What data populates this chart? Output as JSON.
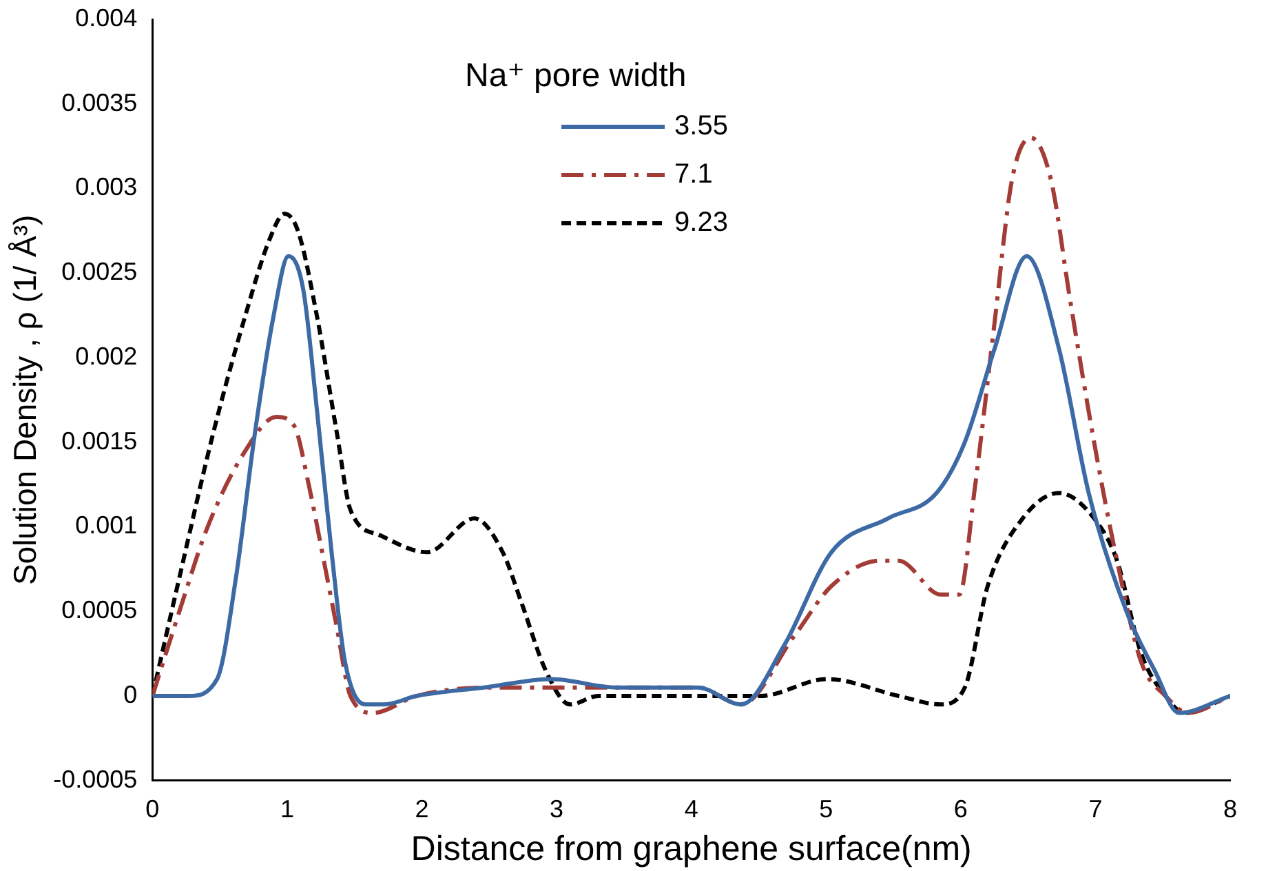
{
  "chart_data": {
    "type": "line",
    "xlabel": "Distance from graphene surface(nm)",
    "ylabel": "Solution Density , ρ (1/ Å³)",
    "legend_title": "Na⁺ pore width",
    "legend": "top",
    "grid": false,
    "marker": "none",
    "xlim": [
      0,
      8
    ],
    "xticks": [
      0,
      1,
      2,
      3,
      4,
      5,
      6,
      7,
      8
    ],
    "ylim": [
      -0.0005,
      0.004
    ],
    "yticks": [
      -0.0005,
      0,
      0.0005,
      0.001,
      0.0015,
      0.002,
      0.0025,
      0.003,
      0.0035,
      0.004
    ],
    "series": [
      {
        "name": "3.55",
        "color": "#3d6aa5",
        "line_style": "solid",
        "x": [
          0,
          0.27,
          0.48,
          0.62,
          0.76,
          0.9,
          1.01,
          1.12,
          1.22,
          1.33,
          1.43,
          1.58,
          1.72,
          1.96,
          2.46,
          2.96,
          3.45,
          4.05,
          4.37,
          4.69,
          5.04,
          5.46,
          5.82,
          6.03,
          6.25,
          6.49,
          6.73,
          6.95,
          7.23,
          7.44,
          7.62,
          8
        ],
        "values": [
          0,
          0,
          0.0001,
          0.0007,
          0.00155,
          0.00225,
          0.0026,
          0.0024,
          0.0017,
          0.00085,
          0.0002,
          -5e-05,
          -5e-05,
          0,
          5e-05,
          0.0001,
          5e-05,
          5e-05,
          -5e-05,
          0.0003,
          0.00085,
          0.00105,
          0.0012,
          0.0015,
          0.00205,
          0.0026,
          0.00205,
          0.0012,
          0.0005,
          0.00015,
          -0.0001,
          0
        ]
      },
      {
        "name": "7.1",
        "color": "#a33b36",
        "line_style": "dashdot",
        "x": [
          0,
          0.2,
          0.41,
          0.69,
          0.92,
          1.05,
          1.16,
          1.26,
          1.37,
          1.47,
          1.64,
          1.96,
          2.49,
          3.1,
          4.05,
          4.37,
          4.76,
          5.04,
          5.4,
          5.54,
          5.85,
          5.99,
          6.1,
          6.25,
          6.38,
          6.52,
          6.67,
          6.81,
          6.99,
          7.16,
          7.34,
          7.52,
          7.69,
          8
        ],
        "values": [
          0,
          0.0005,
          0.001,
          0.00145,
          0.00165,
          0.0016,
          0.00125,
          0.00085,
          0.0004,
          0,
          -0.0001,
          0,
          5e-05,
          5e-05,
          5e-05,
          -5e-05,
          0.00035,
          0.00065,
          0.0008,
          0.0008,
          0.0006,
          0.0006,
          0.0012,
          0.0022,
          0.00305,
          0.0033,
          0.00305,
          0.00235,
          0.0015,
          0.0008,
          0.0002,
          0,
          -0.0001,
          0
        ]
      },
      {
        "name": "9.23",
        "color": "#000000",
        "line_style": "dashed",
        "x": [
          0,
          0.2,
          0.45,
          0.69,
          0.87,
          0.98,
          1.08,
          1.22,
          1.37,
          1.47,
          1.69,
          2.04,
          2.39,
          2.6,
          2.74,
          2.92,
          3.1,
          3.31,
          3.63,
          4.12,
          4.51,
          5.01,
          5.54,
          5.85,
          6.03,
          6.2,
          6.46,
          6.73,
          6.99,
          7.16,
          7.34,
          7.52,
          7.66,
          8
        ],
        "values": [
          0,
          0.0007,
          0.00155,
          0.00225,
          0.0027,
          0.00285,
          0.00275,
          0.00225,
          0.00155,
          0.0011,
          0.00095,
          0.00085,
          0.00105,
          0.00085,
          0.00055,
          0.00015,
          -5e-05,
          0,
          0,
          0,
          0,
          0.0001,
          0,
          -5e-05,
          5e-05,
          0.00065,
          0.00105,
          0.0012,
          0.00105,
          0.0008,
          0.00025,
          0,
          -0.0001,
          0
        ]
      }
    ]
  }
}
